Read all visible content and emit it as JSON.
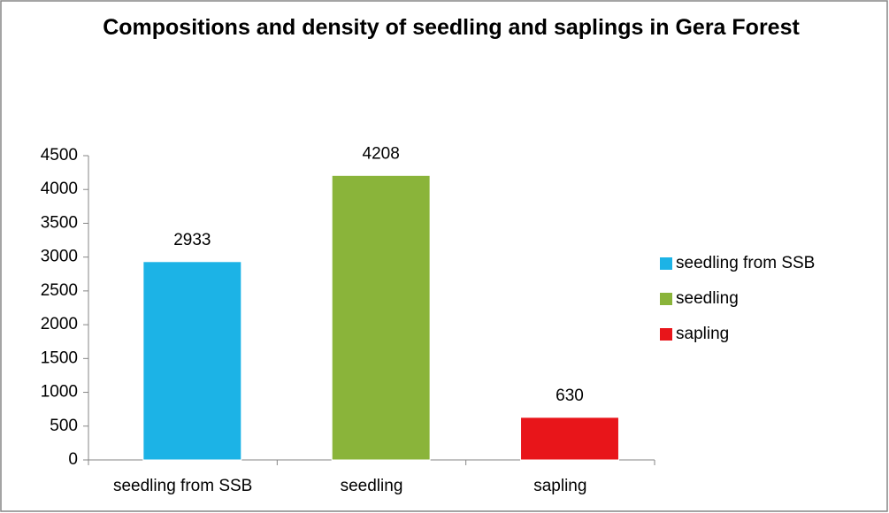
{
  "chart_data": {
    "type": "bar",
    "title": "Compositions and density of seedling and saplings in Gera Forest",
    "categories": [
      "seedling from SSB",
      "seedling",
      "sapling"
    ],
    "values": [
      2933,
      4208,
      630
    ],
    "colors": [
      "#1cb3e6",
      "#8ab43a",
      "#e8151a"
    ],
    "ylim": [
      0,
      4500
    ],
    "yticks": [
      0,
      500,
      1000,
      1500,
      2000,
      2500,
      3000,
      3500,
      4000,
      4500
    ],
    "legend": "right",
    "grid": false
  }
}
